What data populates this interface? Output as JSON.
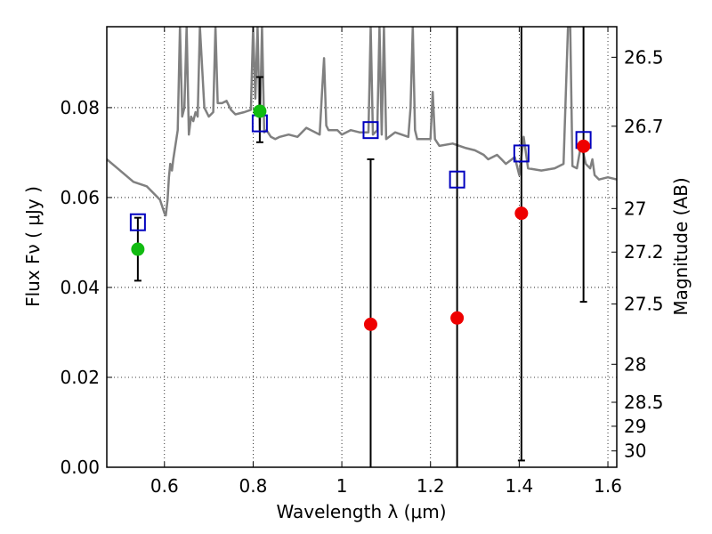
{
  "chart_data": {
    "type": "scatter",
    "xlabel": "Wavelength  λ (μm)",
    "ylabel": "Flux  Fν  ( μJy )",
    "ylabel_right": "Magnitude (AB)",
    "xlim": [
      0.47,
      1.62
    ],
    "ylim": [
      0.0,
      0.098
    ],
    "grid": true,
    "x_ticks": [
      0.6,
      0.8,
      1.0,
      1.2,
      1.4,
      1.6
    ],
    "x_tick_labels": [
      "0.6",
      "0.8",
      "1",
      "1.2",
      "1.4",
      "1.6"
    ],
    "y_ticks": [
      0.0,
      0.02,
      0.04,
      0.06,
      0.08
    ],
    "y_tick_labels": [
      "0.00",
      "0.02",
      "0.04",
      "0.06",
      "0.08"
    ],
    "mag_ticks": [
      26.5,
      26.7,
      27,
      27.2,
      27.5,
      28,
      28.5,
      29,
      30
    ],
    "mag_tick_labels": [
      "26.5",
      "26.7",
      "27",
      "27.2",
      "27.5",
      "28",
      "28.5",
      "29",
      "30"
    ],
    "series": [
      {
        "name": "model-spectrum",
        "kind": "line",
        "color": "#808080",
        "x": [
          0.47,
          0.5,
          0.53,
          0.56,
          0.59,
          0.6,
          0.603,
          0.607,
          0.61,
          0.613,
          0.617,
          0.62,
          0.63,
          0.635,
          0.64,
          0.645,
          0.65,
          0.655,
          0.66,
          0.665,
          0.67,
          0.675,
          0.68,
          0.69,
          0.7,
          0.71,
          0.715,
          0.72,
          0.73,
          0.74,
          0.75,
          0.76,
          0.78,
          0.795,
          0.8,
          0.805,
          0.81,
          0.815,
          0.82,
          0.825,
          0.83,
          0.84,
          0.85,
          0.86,
          0.88,
          0.9,
          0.92,
          0.93,
          0.95,
          0.955,
          0.96,
          0.965,
          0.97,
          0.99,
          1.0,
          1.02,
          1.04,
          1.05,
          1.06,
          1.065,
          1.07,
          1.08,
          1.085,
          1.09,
          1.095,
          1.1,
          1.12,
          1.15,
          1.155,
          1.16,
          1.165,
          1.17,
          1.2,
          1.205,
          1.21,
          1.22,
          1.25,
          1.28,
          1.3,
          1.32,
          1.33,
          1.35,
          1.36,
          1.37,
          1.39,
          1.4,
          1.41,
          1.42,
          1.45,
          1.48,
          1.5,
          1.51,
          1.515,
          1.52,
          1.53,
          1.54,
          1.55,
          1.56,
          1.565,
          1.57,
          1.58,
          1.6,
          1.62
        ],
        "y": [
          0.0685,
          0.066,
          0.0635,
          0.0625,
          0.0595,
          0.0565,
          0.056,
          0.0595,
          0.0645,
          0.0675,
          0.066,
          0.0685,
          0.075,
          0.098,
          0.078,
          0.08,
          0.098,
          0.074,
          0.078,
          0.077,
          0.079,
          0.078,
          0.098,
          0.08,
          0.078,
          0.079,
          0.098,
          0.081,
          0.081,
          0.0815,
          0.0795,
          0.0785,
          0.079,
          0.0795,
          0.098,
          0.082,
          0.098,
          0.075,
          0.098,
          0.0745,
          0.075,
          0.0735,
          0.073,
          0.0735,
          0.074,
          0.0735,
          0.0755,
          0.075,
          0.074,
          0.083,
          0.091,
          0.076,
          0.075,
          0.075,
          0.074,
          0.075,
          0.0745,
          0.0745,
          0.0745,
          0.098,
          0.074,
          0.075,
          0.098,
          0.074,
          0.098,
          0.073,
          0.0745,
          0.0735,
          0.08,
          0.098,
          0.075,
          0.073,
          0.073,
          0.0835,
          0.073,
          0.0715,
          0.072,
          0.071,
          0.0705,
          0.0695,
          0.0685,
          0.0695,
          0.0685,
          0.0675,
          0.069,
          0.065,
          0.0735,
          0.0665,
          0.066,
          0.0665,
          0.0675,
          0.098,
          0.098,
          0.067,
          0.0665,
          0.072,
          0.0675,
          0.0665,
          0.0685,
          0.065,
          0.064,
          0.0645,
          0.064
        ]
      },
      {
        "name": "observed-flux-green",
        "kind": "point",
        "color": "#11bb11",
        "x": [
          0.54,
          0.815
        ],
        "y": [
          0.0485,
          0.0792
        ],
        "err_lo": [
          0.0415,
          0.0723
        ],
        "err_hi": [
          0.0555,
          0.0868
        ]
      },
      {
        "name": "observed-flux-red",
        "kind": "point",
        "color": "#ee0000",
        "x": [
          1.065,
          1.26,
          1.405,
          1.545
        ],
        "y": [
          0.0318,
          0.0332,
          0.0565,
          0.0714
        ],
        "err_lo": [
          0.0,
          0.0,
          0.0015,
          0.0368
        ],
        "err_hi": [
          0.0685,
          0.098,
          0.098,
          0.098
        ]
      },
      {
        "name": "model-photometry",
        "kind": "square",
        "color": "#0000bf",
        "x": [
          0.54,
          0.815,
          1.065,
          1.26,
          1.405,
          1.545
        ],
        "y": [
          0.0545,
          0.0765,
          0.075,
          0.064,
          0.0698,
          0.0728
        ]
      }
    ]
  }
}
